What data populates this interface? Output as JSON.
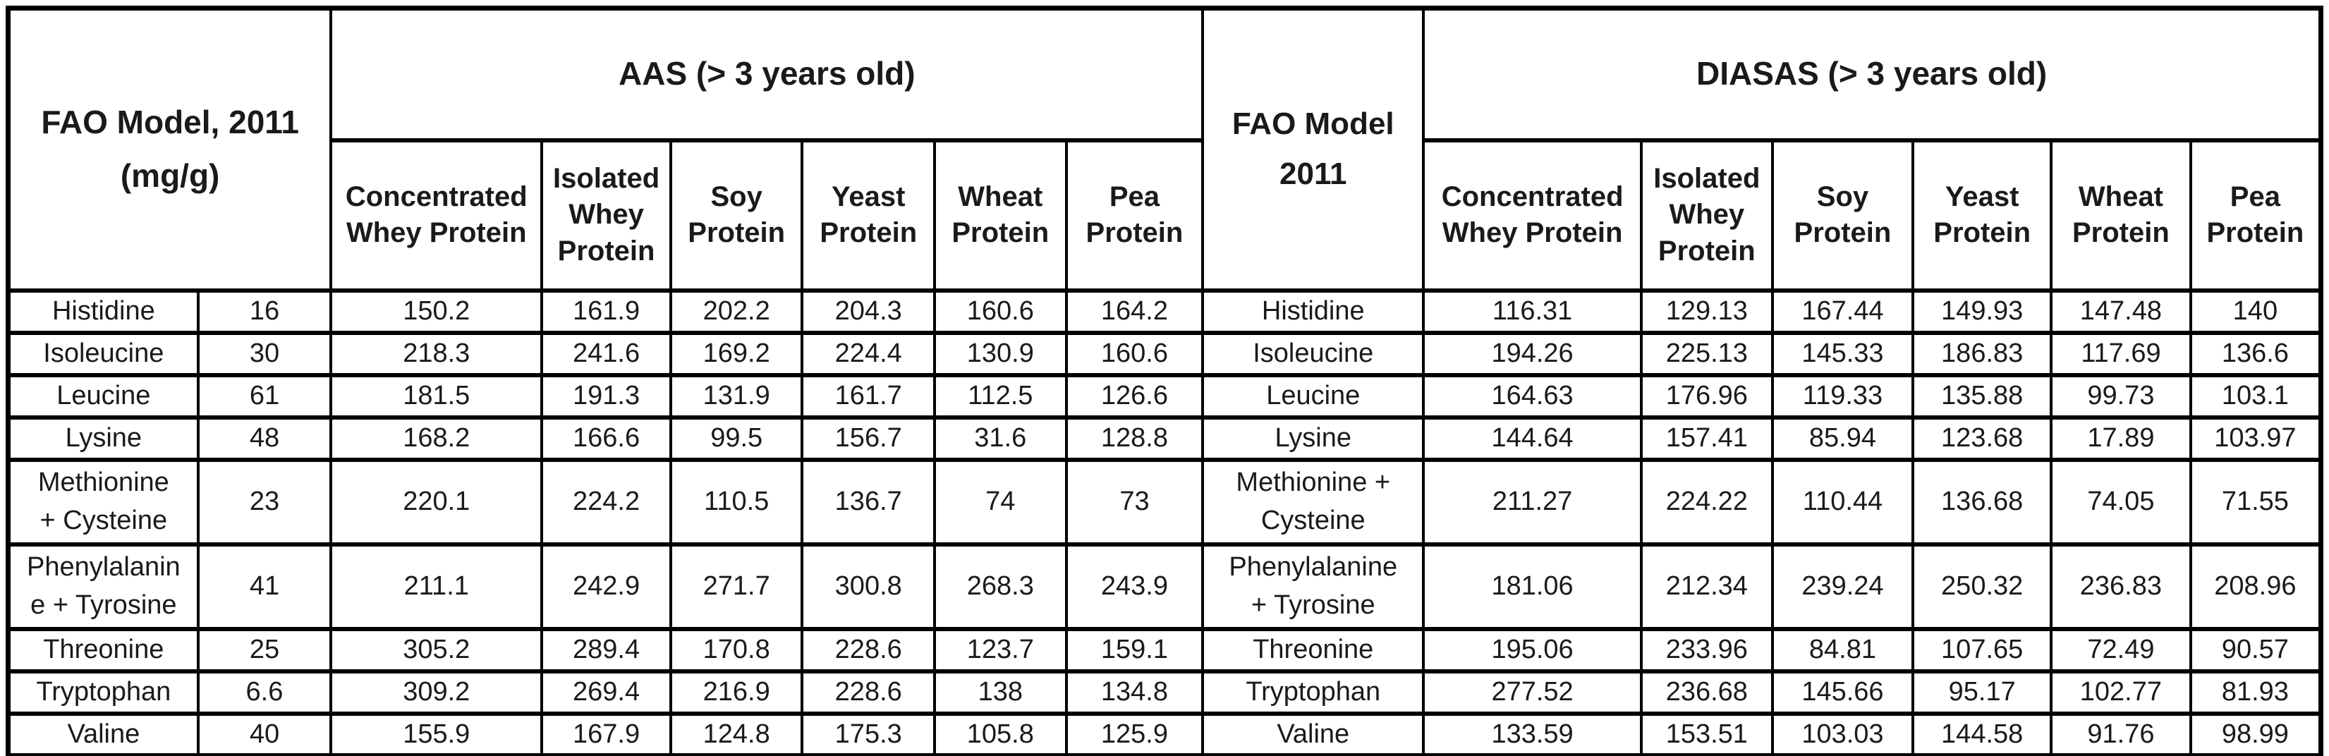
{
  "table": {
    "fao_header_left": "FAO Model, 2011\n(mg/g)",
    "fao_header_mid": "FAO Model\n2011",
    "aas_group": "AAS (> 3 years old)",
    "diasas_group": "DIASAS (> 3 years old)",
    "aas_columns": [
      "Concentrated\nWhey Protein",
      "Isolated\nWhey\nProtein",
      "Soy\nProtein",
      "Yeast\nProtein",
      "Wheat\nProtein",
      "Pea\nProtein"
    ],
    "diasas_columns": [
      "Concentrated\nWhey Protein",
      "Isolated\nWhey\nProtein",
      "Soy\nProtein",
      "Yeast\nProtein",
      "Wheat\nProtein",
      "Pea\nProtein"
    ],
    "rows": [
      {
        "name_left": "Histidine",
        "fao_value": "16",
        "name_mid": "Histidine",
        "aas": [
          "150.2",
          "161.9",
          "202.2",
          "204.3",
          "160.6",
          "164.2"
        ],
        "diasas": [
          "116.31",
          "129.13",
          "167.44",
          "149.93",
          "147.48",
          "140"
        ]
      },
      {
        "name_left": "Isoleucine",
        "fao_value": "30",
        "name_mid": "Isoleucine",
        "aas": [
          "218.3",
          "241.6",
          "169.2",
          "224.4",
          "130.9",
          "160.6"
        ],
        "diasas": [
          "194.26",
          "225.13",
          "145.33",
          "186.83",
          "117.69",
          "136.6"
        ]
      },
      {
        "name_left": "Leucine",
        "fao_value": "61",
        "name_mid": "Leucine",
        "aas": [
          "181.5",
          "191.3",
          "131.9",
          "161.7",
          "112.5",
          "126.6"
        ],
        "diasas": [
          "164.63",
          "176.96",
          "119.33",
          "135.88",
          "99.73",
          "103.1"
        ]
      },
      {
        "name_left": "Lysine",
        "fao_value": "48",
        "name_mid": "Lysine",
        "aas": [
          "168.2",
          "166.6",
          "99.5",
          "156.7",
          "31.6",
          "128.8"
        ],
        "diasas": [
          "144.64",
          "157.41",
          "85.94",
          "123.68",
          "17.89",
          "103.97"
        ]
      },
      {
        "name_left": "Methionine\n+ Cysteine",
        "fao_value": "23",
        "name_mid": "Methionine +\nCysteine",
        "aas": [
          "220.1",
          "224.2",
          "110.5",
          "136.7",
          "74",
          "73"
        ],
        "diasas": [
          "211.27",
          "224.22",
          "110.44",
          "136.68",
          "74.05",
          "71.55"
        ]
      },
      {
        "name_left": "Phenylalanin\ne + Tyrosine",
        "fao_value": "41",
        "name_mid": "Phenylalanine\n+ Tyrosine",
        "aas": [
          "211.1",
          "242.9",
          "271.7",
          "300.8",
          "268.3",
          "243.9"
        ],
        "diasas": [
          "181.06",
          "212.34",
          "239.24",
          "250.32",
          "236.83",
          "208.96"
        ]
      },
      {
        "name_left": "Threonine",
        "fao_value": "25",
        "name_mid": "Threonine",
        "aas": [
          "305.2",
          "289.4",
          "170.8",
          "228.6",
          "123.7",
          "159.1"
        ],
        "diasas": [
          "195.06",
          "233.96",
          "84.81",
          "107.65",
          "72.49",
          "90.57"
        ]
      },
      {
        "name_left": "Tryptophan",
        "fao_value": "6.6",
        "name_mid": "Tryptophan",
        "aas": [
          "309.2",
          "269.4",
          "216.9",
          "228.6",
          "138",
          "134.8"
        ],
        "diasas": [
          "277.52",
          "236.68",
          "145.66",
          "95.17",
          "102.77",
          "81.93"
        ]
      },
      {
        "name_left": "Valine",
        "fao_value": "40",
        "name_mid": "Valine",
        "aas": [
          "155.9",
          "167.9",
          "124.8",
          "175.3",
          "105.8",
          "125.9"
        ],
        "diasas": [
          "133.59",
          "153.51",
          "103.03",
          "144.58",
          "91.76",
          "98.99"
        ]
      }
    ]
  },
  "chart_data": {
    "type": "table",
    "title": "Amino acid scores: AAS and DIASAS (> 3 years old) vs FAO Model 2011 (mg/g)",
    "row_header": "FAO Model, 2011 (mg/g)",
    "amino_acids": [
      "Histidine",
      "Isoleucine",
      "Leucine",
      "Lysine",
      "Methionine + Cysteine",
      "Phenylalanine + Tyrosine",
      "Threonine",
      "Tryptophan",
      "Valine"
    ],
    "fao_requirement_mg_g": [
      16,
      30,
      61,
      48,
      23,
      41,
      25,
      6.6,
      40
    ],
    "protein_sources": [
      "Concentrated Whey Protein",
      "Isolated Whey Protein",
      "Soy Protein",
      "Yeast Protein",
      "Wheat Protein",
      "Pea Protein"
    ],
    "sections": [
      {
        "name": "AAS (> 3 years old)",
        "series": [
          {
            "name": "Concentrated Whey Protein",
            "values": [
              150.2,
              218.3,
              181.5,
              168.2,
              220.1,
              211.1,
              305.2,
              309.2,
              155.9
            ]
          },
          {
            "name": "Isolated Whey Protein",
            "values": [
              161.9,
              241.6,
              191.3,
              166.6,
              224.2,
              242.9,
              289.4,
              269.4,
              167.9
            ]
          },
          {
            "name": "Soy Protein",
            "values": [
              202.2,
              169.2,
              131.9,
              99.5,
              110.5,
              271.7,
              170.8,
              216.9,
              124.8
            ]
          },
          {
            "name": "Yeast Protein",
            "values": [
              204.3,
              224.4,
              161.7,
              156.7,
              136.7,
              300.8,
              228.6,
              228.6,
              175.3
            ]
          },
          {
            "name": "Wheat Protein",
            "values": [
              160.6,
              130.9,
              112.5,
              31.6,
              74,
              268.3,
              123.7,
              138,
              105.8
            ]
          },
          {
            "name": "Pea Protein",
            "values": [
              164.2,
              160.6,
              126.6,
              128.8,
              73,
              243.9,
              159.1,
              134.8,
              125.9
            ]
          }
        ]
      },
      {
        "name": "DIASAS (> 3 years old)",
        "series": [
          {
            "name": "Concentrated Whey Protein",
            "values": [
              116.31,
              194.26,
              164.63,
              144.64,
              211.27,
              181.06,
              195.06,
              277.52,
              133.59
            ]
          },
          {
            "name": "Isolated Whey Protein",
            "values": [
              129.13,
              225.13,
              176.96,
              157.41,
              224.22,
              212.34,
              233.96,
              236.68,
              153.51
            ]
          },
          {
            "name": "Soy Protein",
            "values": [
              167.44,
              145.33,
              119.33,
              85.94,
              110.44,
              239.24,
              84.81,
              145.66,
              103.03
            ]
          },
          {
            "name": "Yeast Protein",
            "values": [
              149.93,
              186.83,
              135.88,
              123.68,
              136.68,
              250.32,
              107.65,
              95.17,
              144.58
            ]
          },
          {
            "name": "Wheat Protein",
            "values": [
              147.48,
              117.69,
              99.73,
              17.89,
              74.05,
              236.83,
              72.49,
              102.77,
              91.76
            ]
          },
          {
            "name": "Pea Protein",
            "values": [
              140,
              136.6,
              103.1,
              103.97,
              71.55,
              208.96,
              90.57,
              81.93,
              98.99
            ]
          }
        ]
      }
    ],
    "grid": true,
    "legend_position": "none"
  }
}
